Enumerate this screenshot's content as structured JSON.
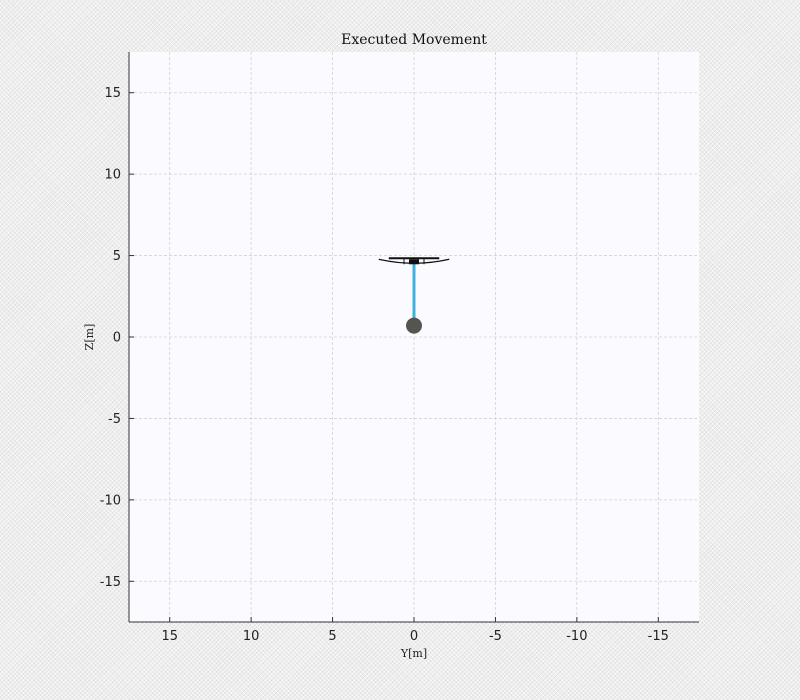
{
  "chart_data": {
    "type": "line",
    "title": "Executed Movement",
    "xlabel": "Y[m]",
    "ylabel": "Z[m]",
    "xlim": [
      17.5,
      -17.5
    ],
    "ylim": [
      -17.5,
      17.5
    ],
    "x_reversed": true,
    "xticks": [
      15,
      10,
      5,
      0,
      -5,
      -10,
      -15
    ],
    "yticks": [
      15,
      10,
      5,
      0,
      -5,
      -10,
      -15
    ],
    "xtick_labels": [
      "15",
      "10",
      "5",
      "0",
      "-5",
      "-10",
      "-15"
    ],
    "ytick_labels": [
      "15",
      "10",
      "5",
      "0",
      "-5",
      "-10",
      "-15"
    ],
    "grid": true,
    "series": [
      {
        "kind": "cable",
        "x": [
          0,
          0
        ],
        "y": [
          4.6,
          0.7
        ],
        "color": "#3fb0e0"
      },
      {
        "kind": "payload",
        "x": [
          0
        ],
        "y": [
          0.7
        ],
        "color": "#555550"
      },
      {
        "kind": "drone",
        "x": [
          0
        ],
        "y": [
          4.65
        ],
        "span": [
          -1.55,
          1.55
        ],
        "color": "#111111"
      }
    ],
    "colors": {
      "grid": "#d2d2d2",
      "axes_bg": "#fbfbff",
      "axes_edge": "#333333"
    }
  }
}
